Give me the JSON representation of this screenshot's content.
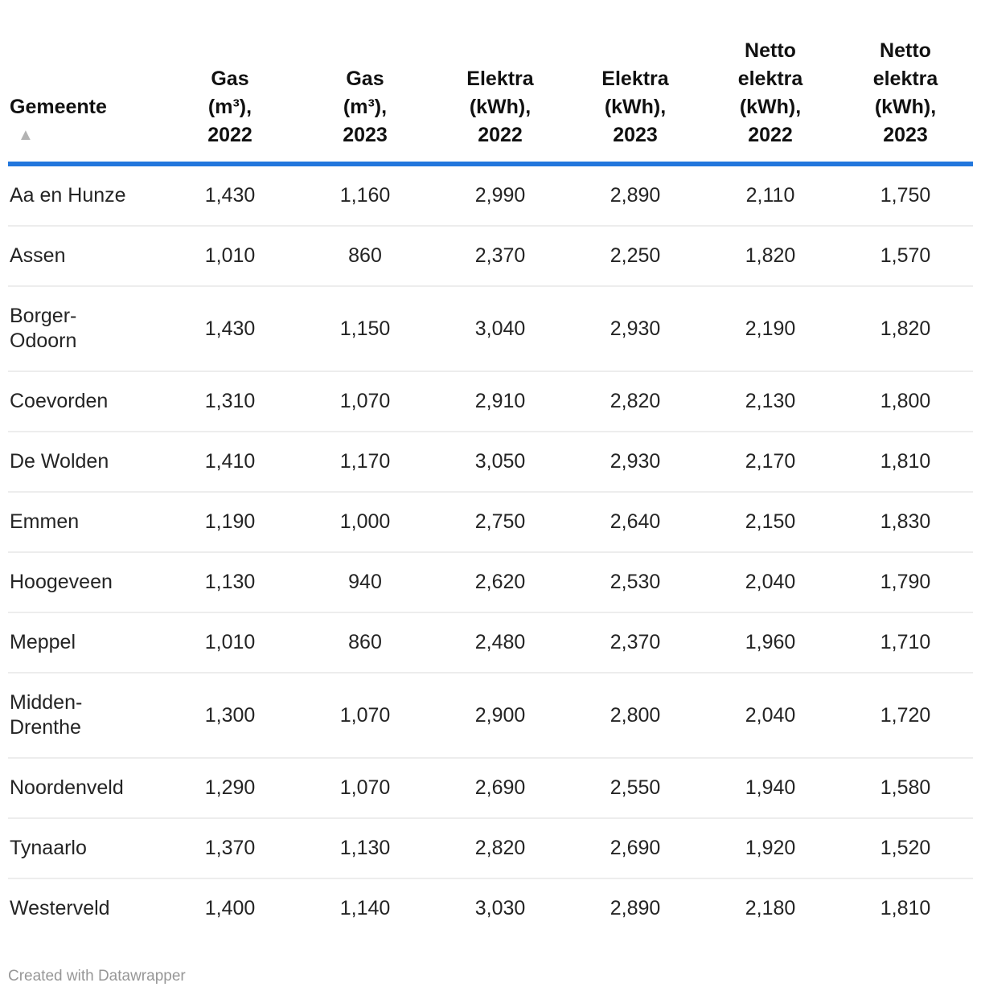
{
  "header": {
    "columns": [
      {
        "id": "gemeente",
        "label": "Gemeente",
        "sort_icon": "▲",
        "align": "left"
      },
      {
        "id": "gas-2022",
        "label": "Gas\n(m³),\n2022",
        "align": "center"
      },
      {
        "id": "gas-2023",
        "label": "Gas\n(m³),\n2023",
        "align": "center"
      },
      {
        "id": "elektra-2022",
        "label": "Elektra\n(kWh),\n2022",
        "align": "center"
      },
      {
        "id": "elektra-2023",
        "label": "Elektra\n(kWh),\n2023",
        "align": "center"
      },
      {
        "id": "netto-2022",
        "label": "Netto\nelektra\n(kWh),\n2022",
        "align": "center"
      },
      {
        "id": "netto-2023",
        "label": "Netto\nelektra\n(kWh),\n2023",
        "align": "center"
      }
    ]
  },
  "rows": [
    {
      "display_name": "Aa en Hunze",
      "values": [
        "1,430",
        "1,160",
        "2,990",
        "2,890",
        "2,110",
        "1,750"
      ]
    },
    {
      "display_name": "Assen",
      "values": [
        "1,010",
        "860",
        "2,370",
        "2,250",
        "1,820",
        "1,570"
      ]
    },
    {
      "display_name": "Borger-\nOdoorn",
      "values": [
        "1,430",
        "1,150",
        "3,040",
        "2,930",
        "2,190",
        "1,820"
      ]
    },
    {
      "display_name": "Coevorden",
      "values": [
        "1,310",
        "1,070",
        "2,910",
        "2,820",
        "2,130",
        "1,800"
      ]
    },
    {
      "display_name": "De Wolden",
      "values": [
        "1,410",
        "1,170",
        "3,050",
        "2,930",
        "2,170",
        "1,810"
      ]
    },
    {
      "display_name": "Emmen",
      "values": [
        "1,190",
        "1,000",
        "2,750",
        "2,640",
        "2,150",
        "1,830"
      ]
    },
    {
      "display_name": "Hoogeveen",
      "values": [
        "1,130",
        "940",
        "2,620",
        "2,530",
        "2,040",
        "1,790"
      ]
    },
    {
      "display_name": "Meppel",
      "values": [
        "1,010",
        "860",
        "2,480",
        "2,370",
        "1,960",
        "1,710"
      ]
    },
    {
      "display_name": "Midden-\nDrenthe",
      "values": [
        "1,300",
        "1,070",
        "2,900",
        "2,800",
        "2,040",
        "1,720"
      ]
    },
    {
      "display_name": "Noordenveld",
      "values": [
        "1,290",
        "1,070",
        "2,690",
        "2,550",
        "1,940",
        "1,580"
      ]
    },
    {
      "display_name": "Tynaarlo",
      "values": [
        "1,370",
        "1,130",
        "2,820",
        "2,690",
        "1,920",
        "1,520"
      ]
    },
    {
      "display_name": "Westerveld",
      "values": [
        "1,400",
        "1,140",
        "3,030",
        "2,890",
        "2,180",
        "1,810"
      ]
    }
  ],
  "footer": {
    "text": "Created with Datawrapper"
  },
  "colors": {
    "accent_rule": "#2277dd",
    "sort_arrow": "#b3b3b3",
    "separator": "#ededed",
    "body_text": "#242424",
    "header_text": "#111111",
    "footer_text": "#979797"
  },
  "chart_data": {
    "type": "table",
    "title": "",
    "columns": [
      "Gemeente",
      "Gas (m³), 2022",
      "Gas (m³), 2023",
      "Elektra (kWh), 2022",
      "Elektra (kWh), 2023",
      "Netto elektra (kWh), 2022",
      "Netto elektra (kWh), 2023"
    ],
    "rows": [
      [
        "Aa en Hunze",
        1430,
        1160,
        2990,
        2890,
        2110,
        1750
      ],
      [
        "Assen",
        1010,
        860,
        2370,
        2250,
        1820,
        1570
      ],
      [
        "Borger-Odoorn",
        1430,
        1150,
        3040,
        2930,
        2190,
        1820
      ],
      [
        "Coevorden",
        1310,
        1070,
        2910,
        2820,
        2130,
        1800
      ],
      [
        "De Wolden",
        1410,
        1170,
        3050,
        2930,
        2170,
        1810
      ],
      [
        "Emmen",
        1190,
        1000,
        2750,
        2640,
        2150,
        1830
      ],
      [
        "Hoogeveen",
        1130,
        940,
        2620,
        2530,
        2040,
        1790
      ],
      [
        "Meppel",
        1010,
        860,
        2480,
        2370,
        1960,
        1710
      ],
      [
        "Midden-Drenthe",
        1300,
        1070,
        2900,
        2800,
        2040,
        1720
      ],
      [
        "Noordenveld",
        1290,
        1070,
        2690,
        2550,
        1940,
        1580
      ],
      [
        "Tynaarlo",
        1370,
        1130,
        2820,
        2690,
        1920,
        1520
      ],
      [
        "Westerveld",
        1400,
        1140,
        3030,
        2890,
        2180,
        1810
      ]
    ],
    "sort": {
      "column": "Gemeente",
      "direction": "ascending"
    },
    "legend_position": "none",
    "grid": "horizontal-separators"
  }
}
